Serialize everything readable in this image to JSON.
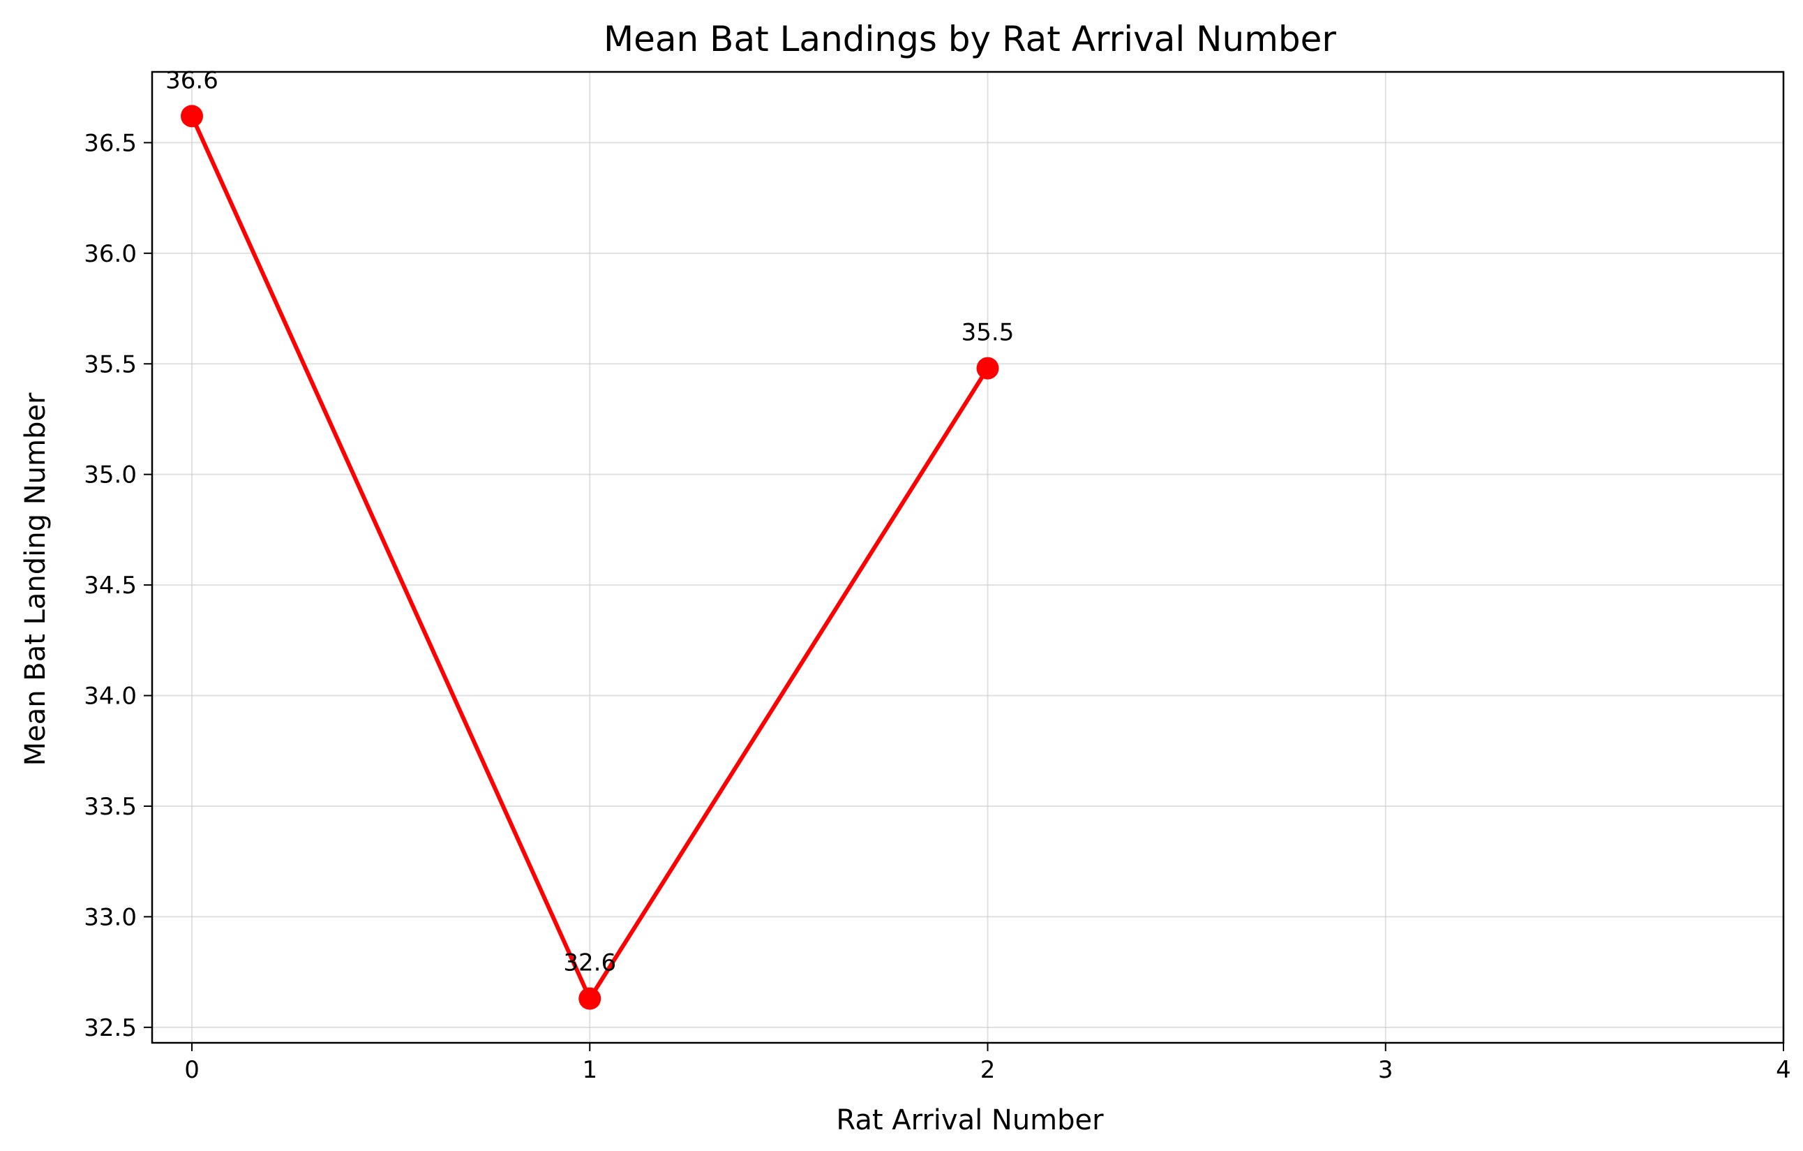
{
  "chart_data": {
    "type": "line",
    "title": "Mean Bat Landings by Rat Arrival Number",
    "xlabel": "Rat Arrival Number",
    "ylabel": "Mean Bat Landing Number",
    "x": [
      0,
      1,
      2
    ],
    "series": [
      {
        "values": [
          36.62,
          32.63,
          35.48
        ],
        "color": "#ff0000",
        "labels": [
          "36.6",
          "32.6",
          "35.5"
        ]
      }
    ],
    "xlim": [
      -0.1,
      4
    ],
    "ylim": [
      32.43,
      36.82
    ],
    "xticks": [
      0,
      1,
      2,
      3,
      4
    ],
    "xtick_labels": [
      "0",
      "1",
      "2",
      "3",
      "4"
    ],
    "yticks": [
      32.5,
      33.0,
      33.5,
      34.0,
      34.5,
      35.0,
      35.5,
      36.0,
      36.5
    ],
    "ytick_labels": [
      "32.5",
      "33.0",
      "33.5",
      "34.0",
      "34.5",
      "35.0",
      "35.5",
      "36.0",
      "36.5"
    ],
    "grid": true,
    "legend": "none"
  }
}
